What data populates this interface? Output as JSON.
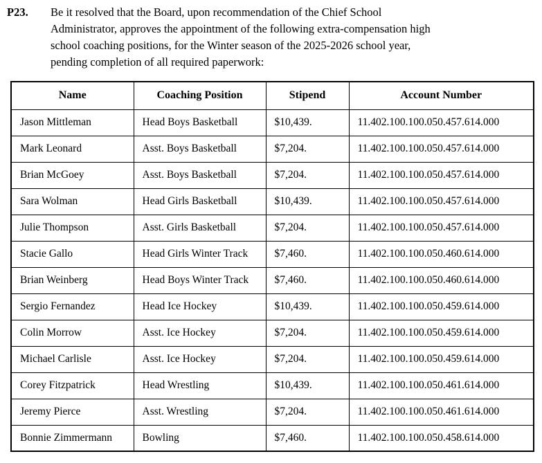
{
  "resolution": {
    "number": "P23.",
    "lines": [
      "Be it resolved that the Board, upon recommendation of the Chief School",
      "Administrator, approves the appointment of the following extra-compensation high",
      "school coaching positions, for the Winter season of the 2025-2026 school year,",
      "pending completion of all required paperwork:"
    ],
    "full_text": "Be it resolved that the Board, upon recommendation of the Chief School Administrator, approves the appointment of the following extra-compensation high school coaching positions, for the Winter season of the 2025-2026 school year, pending completion of all required paperwork:"
  },
  "table": {
    "columns": [
      {
        "key": "name",
        "label": "Name"
      },
      {
        "key": "position",
        "label": "Coaching Position"
      },
      {
        "key": "stipend",
        "label": "Stipend"
      },
      {
        "key": "account",
        "label": "Account Number"
      }
    ],
    "rows": [
      [
        "Jason Mittleman",
        "Head Boys Basketball",
        "$10,439.",
        "11.402.100.100.050.457.614.000"
      ],
      [
        "Mark Leonard",
        "Asst. Boys Basketball",
        "$7,204.",
        "11.402.100.100.050.457.614.000"
      ],
      [
        "Brian McGoey",
        "Asst. Boys Basketball",
        "$7,204.",
        "11.402.100.100.050.457.614.000"
      ],
      [
        "Sara Wolman",
        "Head Girls Basketball",
        "$10,439.",
        "11.402.100.100.050.457.614.000"
      ],
      [
        "Julie Thompson",
        "Asst. Girls Basketball",
        "$7,204.",
        "11.402.100.100.050.457.614.000"
      ],
      [
        "Stacie Gallo",
        "Head Girls Winter Track",
        "$7,460.",
        "11.402.100.100.050.460.614.000"
      ],
      [
        "Brian Weinberg",
        "Head Boys Winter Track",
        "$7,460.",
        "11.402.100.100.050.460.614.000"
      ],
      [
        "Sergio Fernandez",
        "Head Ice Hockey",
        "$10,439.",
        "11.402.100.100.050.459.614.000"
      ],
      [
        "Colin Morrow",
        "Asst. Ice Hockey",
        "$7,204.",
        "11.402.100.100.050.459.614.000"
      ],
      [
        "Michael Carlisle",
        "Asst. Ice Hockey",
        "$7,204.",
        "11.402.100.100.050.459.614.000"
      ],
      [
        "Corey Fitzpatrick",
        "Head Wrestling",
        "$10,439.",
        "11.402.100.100.050.461.614.000"
      ],
      [
        "Jeremy Pierce",
        "Asst. Wrestling",
        "$7,204.",
        "11.402.100.100.050.461.614.000"
      ],
      [
        "Bonnie Zimmermann",
        "Bowling",
        "$7,460.",
        "11.402.100.100.050.458.614.000"
      ]
    ]
  },
  "colors": {
    "text": "#000000",
    "background": "#ffffff",
    "border": "#000000"
  }
}
